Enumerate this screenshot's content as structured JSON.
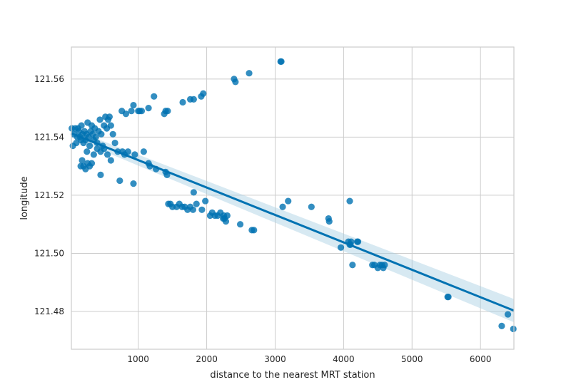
{
  "chart_data": {
    "type": "scatter",
    "title": "",
    "xlabel": "distance to the nearest MRT station",
    "ylabel": "longitude",
    "xlim": [
      23,
      6488
    ],
    "ylim": [
      121.467,
      121.571
    ],
    "xticks": [
      1000,
      2000,
      3000,
      4000,
      5000,
      6000
    ],
    "yticks": [
      121.48,
      121.5,
      121.52,
      121.54,
      121.56
    ],
    "ytick_labels": [
      "121.48",
      "121.50",
      "121.52",
      "121.54",
      "121.56"
    ],
    "grid": true,
    "colors": {
      "point": "#0072B2",
      "line": "#0072B2",
      "band": "#a6cee3"
    },
    "regression": {
      "x": [
        23,
        6488
      ],
      "y": [
        121.5413,
        121.4803
      ],
      "ci_lower": [
        121.5398,
        121.4763
      ],
      "ci_upper": [
        121.5428,
        121.4843
      ]
    },
    "points": [
      [
        30,
        121.543
      ],
      [
        45,
        121.537
      ],
      [
        60,
        121.541
      ],
      [
        80,
        121.543
      ],
      [
        95,
        121.538
      ],
      [
        110,
        121.54
      ],
      [
        120,
        121.543
      ],
      [
        135,
        121.542
      ],
      [
        150,
        121.54
      ],
      [
        165,
        121.539
      ],
      [
        170,
        121.544
      ],
      [
        185,
        121.541
      ],
      [
        200,
        121.538
      ],
      [
        215,
        121.542
      ],
      [
        230,
        121.539
      ],
      [
        245,
        121.541
      ],
      [
        260,
        121.545
      ],
      [
        275,
        121.54
      ],
      [
        290,
        121.537
      ],
      [
        305,
        121.542
      ],
      [
        320,
        121.544
      ],
      [
        335,
        121.541
      ],
      [
        350,
        121.539
      ],
      [
        365,
        121.543
      ],
      [
        380,
        121.54
      ],
      [
        400,
        121.538
      ],
      [
        420,
        121.542
      ],
      [
        440,
        121.546
      ],
      [
        460,
        121.541
      ],
      [
        480,
        121.537
      ],
      [
        500,
        121.544
      ],
      [
        520,
        121.547
      ],
      [
        540,
        121.543
      ],
      [
        560,
        121.546
      ],
      [
        580,
        121.547
      ],
      [
        600,
        121.544
      ],
      [
        630,
        121.541
      ],
      [
        660,
        121.538
      ],
      [
        700,
        121.535
      ],
      [
        250,
        121.535
      ],
      [
        350,
        121.534
      ],
      [
        400,
        121.536
      ],
      [
        450,
        121.535
      ],
      [
        500,
        121.536
      ],
      [
        550,
        121.534
      ],
      [
        600,
        121.532
      ],
      [
        180,
        121.532
      ],
      [
        200,
        121.53
      ],
      [
        260,
        121.531
      ],
      [
        320,
        121.531
      ],
      [
        160,
        121.53
      ],
      [
        230,
        121.529
      ],
      [
        290,
        121.53
      ],
      [
        450,
        121.527
      ],
      [
        730,
        121.525
      ],
      [
        770,
        121.535
      ],
      [
        800,
        121.534
      ],
      [
        850,
        121.535
      ],
      [
        950,
        121.534
      ],
      [
        1080,
        121.535
      ],
      [
        1150,
        121.531
      ],
      [
        1170,
        121.53
      ],
      [
        1260,
        121.529
      ],
      [
        1400,
        121.528
      ],
      [
        1420,
        121.527
      ],
      [
        930,
        121.524
      ],
      [
        820,
        121.548
      ],
      [
        760,
        121.549
      ],
      [
        900,
        121.549
      ],
      [
        1000,
        121.549
      ],
      [
        1020,
        121.549
      ],
      [
        1050,
        121.549
      ],
      [
        1150,
        121.55
      ],
      [
        1380,
        121.548
      ],
      [
        1400,
        121.549
      ],
      [
        1430,
        121.549
      ],
      [
        930,
        121.551
      ],
      [
        1230,
        121.554
      ],
      [
        1650,
        121.552
      ],
      [
        1760,
        121.553
      ],
      [
        1810,
        121.553
      ],
      [
        1920,
        121.554
      ],
      [
        1950,
        121.555
      ],
      [
        2400,
        121.56
      ],
      [
        2420,
        121.559
      ],
      [
        2620,
        121.562
      ],
      [
        3080,
        121.566
      ],
      [
        3090,
        121.566
      ],
      [
        1440,
        121.517
      ],
      [
        1470,
        121.517
      ],
      [
        1500,
        121.516
      ],
      [
        1560,
        121.516
      ],
      [
        1600,
        121.517
      ],
      [
        1640,
        121.516
      ],
      [
        1680,
        121.516
      ],
      [
        1720,
        121.515
      ],
      [
        1760,
        121.516
      ],
      [
        1800,
        121.515
      ],
      [
        1810,
        121.521
      ],
      [
        1850,
        121.517
      ],
      [
        1930,
        121.515
      ],
      [
        1980,
        121.518
      ],
      [
        2050,
        121.513
      ],
      [
        2080,
        121.514
      ],
      [
        2120,
        121.513
      ],
      [
        2160,
        121.513
      ],
      [
        2200,
        121.514
      ],
      [
        2240,
        121.512
      ],
      [
        2250,
        121.513
      ],
      [
        2260,
        121.512
      ],
      [
        2280,
        121.511
      ],
      [
        2300,
        121.513
      ],
      [
        2490,
        121.51
      ],
      [
        2660,
        121.508
      ],
      [
        2690,
        121.508
      ],
      [
        3110,
        121.516
      ],
      [
        3190,
        121.518
      ],
      [
        3530,
        121.516
      ],
      [
        3780,
        121.512
      ],
      [
        3790,
        121.511
      ],
      [
        3960,
        121.502
      ],
      [
        4070,
        121.504
      ],
      [
        4090,
        121.503
      ],
      [
        4100,
        121.503
      ],
      [
        4110,
        121.504
      ],
      [
        4200,
        121.504
      ],
      [
        4210,
        121.504
      ],
      [
        4090,
        121.518
      ],
      [
        4130,
        121.496
      ],
      [
        4420,
        121.496
      ],
      [
        4450,
        121.496
      ],
      [
        4500,
        121.495
      ],
      [
        4530,
        121.496
      ],
      [
        4560,
        121.496
      ],
      [
        4580,
        121.495
      ],
      [
        4600,
        121.496
      ],
      [
        5520,
        121.485
      ],
      [
        5530,
        121.485
      ],
      [
        6310,
        121.475
      ],
      [
        6400,
        121.479
      ],
      [
        6480,
        121.474
      ]
    ]
  }
}
